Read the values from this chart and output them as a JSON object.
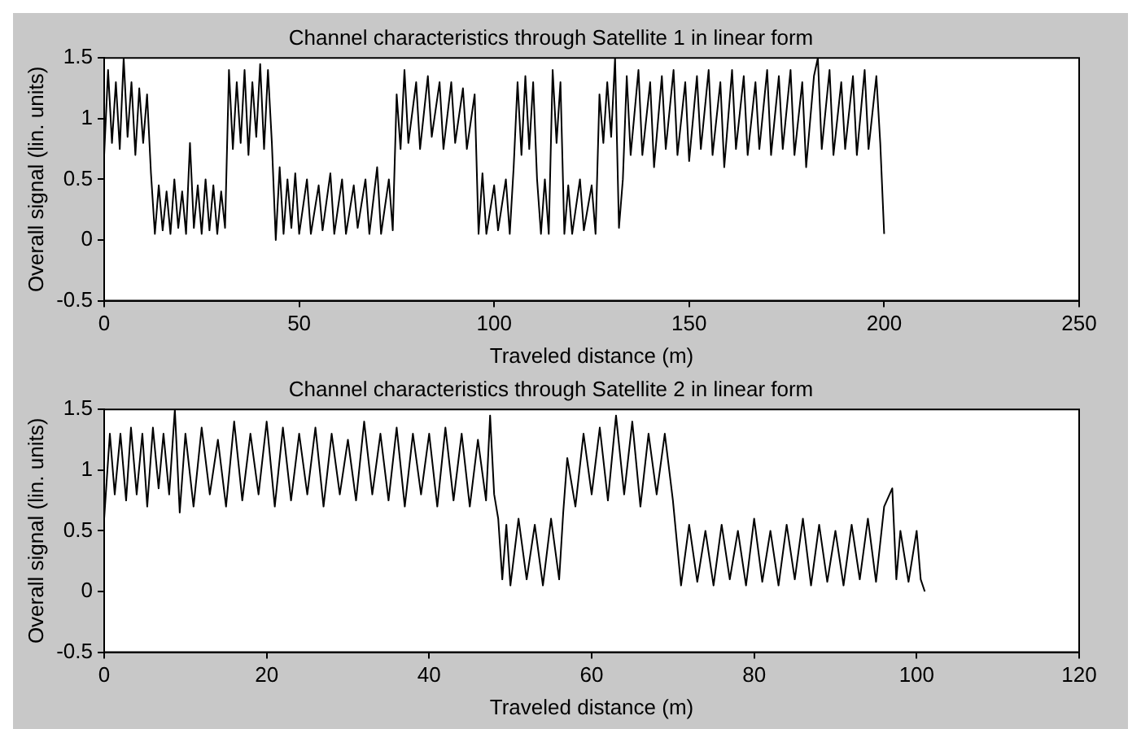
{
  "chart_data": [
    {
      "type": "line",
      "title": "Channel characteristics through Satellite 1 in linear form",
      "xlabel": "Traveled distance (m)",
      "ylabel": "Overall signal (lin. units)",
      "xlim": [
        0,
        250
      ],
      "xticks": [
        0,
        50,
        100,
        150,
        200,
        250
      ],
      "ylim": [
        -0.5,
        1.5
      ],
      "yticks": [
        -0.5,
        0,
        0.5,
        1,
        1.5
      ],
      "grid": false,
      "color": "#000000",
      "x": [
        0,
        1,
        2,
        3,
        4,
        5,
        6,
        7,
        8,
        9,
        10,
        11,
        12,
        13,
        14,
        15,
        16,
        17,
        18,
        19,
        20,
        21,
        22,
        23,
        24,
        25,
        26,
        27,
        28,
        29,
        30,
        31,
        32,
        33,
        34,
        35,
        36,
        37,
        38,
        39,
        40,
        41,
        42,
        43,
        44,
        45,
        46,
        47,
        48,
        49,
        50,
        52,
        53,
        55,
        56,
        58,
        59,
        61,
        62,
        64,
        65,
        67,
        68,
        70,
        71,
        73,
        74,
        75,
        76,
        77,
        78,
        80,
        81,
        83,
        84,
        86,
        87,
        89,
        90,
        92,
        93,
        95,
        96,
        97,
        98,
        100,
        101,
        103,
        104,
        105,
        106,
        107,
        108,
        109,
        110,
        111,
        112,
        113,
        114,
        115,
        116,
        117,
        118,
        119,
        120,
        122,
        123,
        125,
        126,
        127,
        128,
        129,
        130,
        131,
        132,
        133,
        134,
        135,
        137,
        138,
        140,
        141,
        143,
        144,
        146,
        147,
        149,
        150,
        152,
        153,
        155,
        156,
        158,
        159,
        161,
        162,
        164,
        165,
        167,
        168,
        170,
        171,
        173,
        174,
        176,
        177,
        179,
        180,
        182,
        183,
        184,
        186,
        187,
        189,
        190,
        192,
        193,
        195,
        196,
        198,
        199,
        200
      ],
      "values": [
        0.7,
        1.4,
        0.8,
        1.3,
        0.75,
        1.5,
        0.85,
        1.3,
        0.7,
        1.25,
        0.8,
        1.2,
        0.55,
        0.05,
        0.45,
        0.08,
        0.4,
        0.05,
        0.5,
        0.1,
        0.4,
        0.05,
        0.8,
        0.1,
        0.45,
        0.05,
        0.5,
        0.08,
        0.45,
        0.05,
        0.4,
        0.1,
        1.4,
        0.75,
        1.3,
        0.8,
        1.4,
        0.7,
        1.3,
        0.85,
        1.45,
        0.75,
        1.4,
        0.8,
        0.0,
        0.6,
        0.05,
        0.5,
        0.1,
        0.55,
        0.05,
        0.5,
        0.05,
        0.45,
        0.08,
        0.55,
        0.05,
        0.5,
        0.05,
        0.45,
        0.1,
        0.5,
        0.05,
        0.6,
        0.05,
        0.5,
        0.08,
        1.2,
        0.75,
        1.4,
        0.8,
        1.3,
        0.75,
        1.35,
        0.85,
        1.3,
        0.75,
        1.3,
        0.8,
        1.25,
        0.75,
        1.2,
        0.05,
        0.55,
        0.05,
        0.45,
        0.08,
        0.5,
        0.05,
        0.6,
        1.3,
        0.7,
        1.35,
        0.75,
        1.3,
        0.5,
        0.05,
        0.5,
        0.05,
        1.4,
        0.8,
        1.3,
        0.05,
        0.45,
        0.05,
        0.5,
        0.08,
        0.45,
        0.05,
        1.2,
        0.8,
        1.3,
        0.85,
        1.5,
        0.1,
        0.5,
        1.35,
        0.7,
        1.4,
        0.7,
        1.3,
        0.6,
        1.35,
        0.75,
        1.4,
        0.7,
        1.3,
        0.65,
        1.35,
        0.75,
        1.4,
        0.7,
        1.3,
        0.6,
        1.4,
        0.75,
        1.35,
        0.7,
        1.3,
        0.75,
        1.4,
        0.7,
        1.35,
        0.75,
        1.4,
        0.7,
        1.3,
        0.6,
        1.35,
        1.5,
        0.75,
        1.4,
        0.7,
        1.3,
        0.75,
        1.35,
        0.7,
        1.4,
        0.75,
        1.35,
        0.8,
        0.05
      ]
    },
    {
      "type": "line",
      "title": "Channel characteristics through Satellite 2 in linear form",
      "xlabel": "Traveled distance (m)",
      "ylabel": "Overall signal (lin. units)",
      "xlim": [
        0,
        120
      ],
      "xticks": [
        0,
        20,
        40,
        60,
        80,
        100,
        120
      ],
      "ylim": [
        -0.5,
        1.5
      ],
      "yticks": [
        -0.5,
        0,
        0.5,
        1,
        1.5
      ],
      "grid": false,
      "color": "#000000",
      "x": [
        0,
        0.7,
        1.3,
        2,
        2.7,
        3.3,
        4,
        4.7,
        5.3,
        6,
        6.7,
        7.3,
        8,
        8.7,
        9.3,
        10,
        11,
        12,
        13,
        14,
        15,
        16,
        17,
        18,
        19,
        20,
        21,
        22,
        23,
        24,
        25,
        26,
        27,
        28,
        29,
        30,
        31,
        32,
        33,
        34,
        35,
        36,
        37,
        38,
        39,
        40,
        41,
        42,
        43,
        44,
        45,
        46,
        47,
        47.5,
        48,
        48.5,
        49,
        49.5,
        50,
        51,
        52,
        53,
        54,
        55,
        56,
        56.5,
        57,
        58,
        59,
        60,
        61,
        62,
        63,
        64,
        65,
        66,
        67,
        68,
        69,
        70,
        70.5,
        71,
        72,
        73,
        74,
        75,
        76,
        77,
        78,
        79,
        80,
        81,
        82,
        83,
        84,
        85,
        86,
        87,
        88,
        89,
        90,
        91,
        92,
        93,
        94,
        95,
        96,
        97,
        97.5,
        98,
        99,
        100,
        100.5,
        101
      ],
      "values": [
        0.6,
        1.3,
        0.8,
        1.3,
        0.75,
        1.35,
        0.8,
        1.3,
        0.7,
        1.35,
        0.85,
        1.3,
        0.8,
        1.5,
        0.65,
        1.3,
        0.7,
        1.35,
        0.8,
        1.25,
        0.7,
        1.4,
        0.75,
        1.3,
        0.8,
        1.4,
        0.7,
        1.35,
        0.75,
        1.3,
        0.8,
        1.35,
        0.7,
        1.3,
        0.8,
        1.25,
        0.75,
        1.4,
        0.8,
        1.3,
        0.75,
        1.35,
        0.7,
        1.3,
        0.8,
        1.3,
        0.7,
        1.35,
        0.75,
        1.3,
        0.7,
        1.25,
        0.75,
        1.45,
        0.8,
        0.6,
        0.1,
        0.55,
        0.05,
        0.6,
        0.1,
        0.55,
        0.05,
        0.6,
        0.1,
        0.65,
        1.1,
        0.7,
        1.3,
        0.8,
        1.35,
        0.75,
        1.45,
        0.8,
        1.4,
        0.7,
        1.3,
        0.8,
        1.3,
        0.75,
        0.4,
        0.05,
        0.55,
        0.08,
        0.5,
        0.05,
        0.55,
        0.1,
        0.5,
        0.05,
        0.6,
        0.08,
        0.5,
        0.05,
        0.55,
        0.1,
        0.6,
        0.05,
        0.55,
        0.08,
        0.5,
        0.05,
        0.55,
        0.1,
        0.6,
        0.08,
        0.7,
        0.85,
        0.1,
        0.5,
        0.08,
        0.5,
        0.1,
        0.0
      ]
    }
  ]
}
